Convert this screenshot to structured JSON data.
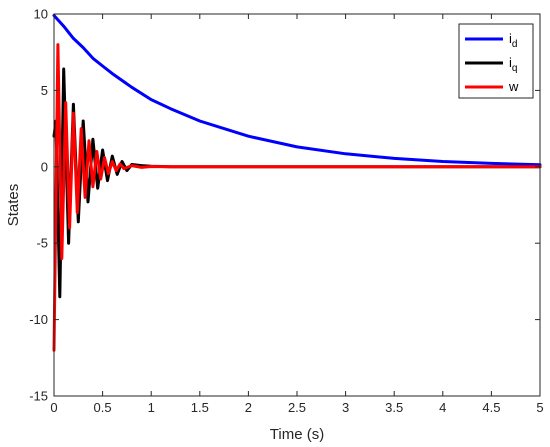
{
  "chart_data": {
    "type": "line",
    "title": "",
    "xlabel": "Time (s)",
    "ylabel": "States",
    "xlim": [
      0,
      5
    ],
    "ylim": [
      -15,
      10
    ],
    "grid": false,
    "legend_position": "top-right",
    "x_ticks": [
      0,
      0.5,
      1,
      1.5,
      2,
      2.5,
      3,
      3.5,
      4,
      4.5,
      5
    ],
    "x_tick_labels": [
      "0",
      "0.5",
      "1",
      "1.5",
      "2",
      "2.5",
      "3",
      "3.5",
      "4",
      "4.5",
      "5"
    ],
    "y_ticks": [
      -15,
      -10,
      -5,
      0,
      5,
      10
    ],
    "y_tick_labels": [
      "-15",
      "-10",
      "-5",
      "0",
      "5",
      "10"
    ],
    "series": [
      {
        "name": "i_d",
        "legend_main": "i",
        "legend_sub": "d",
        "color": "#0000ff",
        "x": [
          0,
          0.1,
          0.2,
          0.3,
          0.4,
          0.5,
          0.6,
          0.8,
          1.0,
          1.2,
          1.5,
          2.0,
          2.5,
          3.0,
          3.5,
          4.0,
          4.5,
          5.0
        ],
        "y": [
          9.9,
          9.2,
          8.4,
          7.8,
          7.1,
          6.6,
          6.1,
          5.2,
          4.4,
          3.8,
          3.0,
          2.0,
          1.3,
          0.85,
          0.55,
          0.35,
          0.22,
          0.14
        ]
      },
      {
        "name": "i_q",
        "legend_main": "i",
        "legend_sub": "q",
        "color": "#000000",
        "x": [
          0,
          0.02,
          0.06,
          0.1,
          0.15,
          0.2,
          0.25,
          0.3,
          0.35,
          0.4,
          0.45,
          0.5,
          0.55,
          0.6,
          0.65,
          0.7,
          0.75,
          0.8,
          0.9,
          1.0,
          1.2,
          1.5,
          5.0
        ],
        "y": [
          2.0,
          3.0,
          -8.5,
          6.4,
          -5.0,
          4.1,
          -3.6,
          3.0,
          -2.3,
          1.8,
          -1.4,
          1.1,
          -0.9,
          0.7,
          -0.5,
          0.35,
          -0.25,
          0.15,
          0.08,
          0.04,
          0.0,
          0.0,
          0.0
        ]
      },
      {
        "name": "w",
        "legend_main": "w",
        "legend_sub": "",
        "color": "#ff0000",
        "x": [
          0,
          0.04,
          0.08,
          0.12,
          0.16,
          0.2,
          0.24,
          0.28,
          0.32,
          0.36,
          0.4,
          0.44,
          0.48,
          0.52,
          0.56,
          0.6,
          0.64,
          0.68,
          0.72,
          0.8,
          0.9,
          1.0,
          1.2,
          1.5,
          5.0
        ],
        "y": [
          -12.0,
          8.0,
          -6.0,
          4.2,
          -4.0,
          3.5,
          -3.0,
          2.5,
          -2.0,
          1.7,
          -1.3,
          1.0,
          -0.8,
          0.6,
          -0.45,
          0.35,
          -0.25,
          0.18,
          -0.12,
          0.08,
          -0.04,
          0.02,
          0.0,
          0.0,
          0.0
        ]
      }
    ]
  }
}
